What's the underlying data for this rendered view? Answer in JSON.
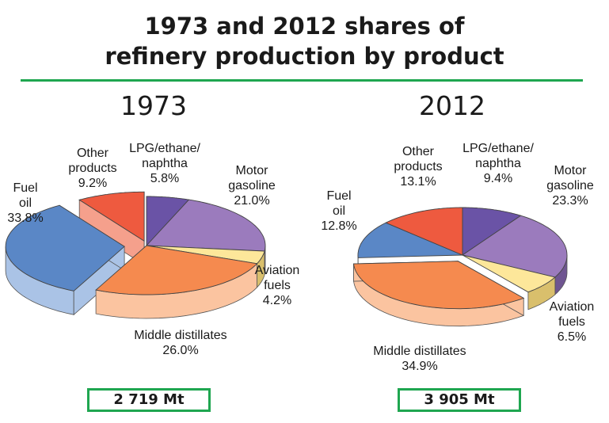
{
  "title_line1": "1973 and 2012 shares of",
  "title_line2": "refinery production by product",
  "chart_data": [
    {
      "type": "pie",
      "title": "1973",
      "total": "2 719 Mt",
      "slices": [
        {
          "key": "lpg",
          "label_lines": [
            "LPG/ethane/",
            "naphtha"
          ],
          "value_label": "5.8%",
          "value": 5.8,
          "color": "#6a53a6",
          "side": "#4b3a80"
        },
        {
          "key": "motor",
          "label_lines": [
            "Motor",
            "gasoline"
          ],
          "value_label": "21.0%",
          "value": 21.0,
          "color": "#9b7bbd",
          "side": "#6f5591"
        },
        {
          "key": "aviation",
          "label_lines": [
            "Aviation",
            "fuels"
          ],
          "value_label": "4.2%",
          "value": 4.2,
          "color": "#fde79a",
          "side": "#d9bf6c"
        },
        {
          "key": "middle",
          "label_lines": [
            "Middle distillates"
          ],
          "value_label": "26.0%",
          "value": 26.0,
          "color": "#f58a4f",
          "side": "#fbc4a0"
        },
        {
          "key": "fuel",
          "label_lines": [
            "Fuel",
            "oil"
          ],
          "value_label": "33.8%",
          "value": 33.8,
          "color": "#5a87c6",
          "side": "#aac3e6"
        },
        {
          "key": "other",
          "label_lines": [
            "Other",
            "products"
          ],
          "value_label": "9.2%",
          "value": 9.2,
          "color": "#ee5a3f",
          "side": "#f5a08c"
        }
      ]
    },
    {
      "type": "pie",
      "title": "2012",
      "total": "3 905 Mt",
      "slices": [
        {
          "key": "lpg",
          "label_lines": [
            "LPG/ethane/",
            "naphtha"
          ],
          "value_label": "9.4%",
          "value": 9.4,
          "color": "#6a53a6",
          "side": "#4b3a80"
        },
        {
          "key": "motor",
          "label_lines": [
            "Motor",
            "gasoline"
          ],
          "value_label": "23.3%",
          "value": 23.3,
          "color": "#9b7bbd",
          "side": "#6f5591"
        },
        {
          "key": "aviation",
          "label_lines": [
            "Aviation",
            "fuels"
          ],
          "value_label": "6.5%",
          "value": 6.5,
          "color": "#fde79a",
          "side": "#d9bf6c"
        },
        {
          "key": "middle",
          "label_lines": [
            "Middle distillates"
          ],
          "value_label": "34.9%",
          "value": 34.9,
          "color": "#f58a4f",
          "side": "#fbc4a0"
        },
        {
          "key": "fuel",
          "label_lines": [
            "Fuel",
            "oil"
          ],
          "value_label": "12.8%",
          "value": 12.8,
          "color": "#5a87c6",
          "side": "#aac3e6"
        },
        {
          "key": "other",
          "label_lines": [
            "Other",
            "products"
          ],
          "value_label": "13.1%",
          "value": 13.1,
          "color": "#ee5a3f",
          "side": "#f5a08c"
        }
      ]
    }
  ]
}
